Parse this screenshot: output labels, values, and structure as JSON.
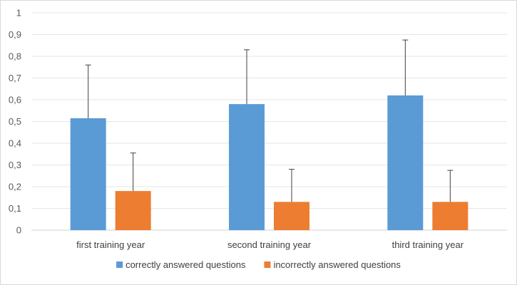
{
  "chart_data": {
    "type": "bar",
    "categories": [
      "first training year",
      "second training year",
      "third training year"
    ],
    "series": [
      {
        "name": "correctly answered questions",
        "color": "#5b9bd5",
        "values": [
          0.515,
          0.58,
          0.62
        ],
        "error_upper": [
          0.76,
          0.83,
          0.875
        ]
      },
      {
        "name": "incorrectly answered questions",
        "color": "#ed7d31",
        "values": [
          0.18,
          0.13,
          0.13
        ],
        "error_upper": [
          0.355,
          0.28,
          0.275
        ]
      }
    ],
    "ylim": [
      0,
      1
    ],
    "yticks": [
      0,
      0.1,
      0.2,
      0.3,
      0.4,
      0.5,
      0.6,
      0.7,
      0.8,
      0.9,
      1
    ],
    "ytick_labels": [
      "0",
      "0,1",
      "0,2",
      "0,3",
      "0,4",
      "0,5",
      "0,6",
      "0,7",
      "0,8",
      "0,9",
      "1"
    ],
    "grid": true,
    "legend_position": "bottom"
  }
}
